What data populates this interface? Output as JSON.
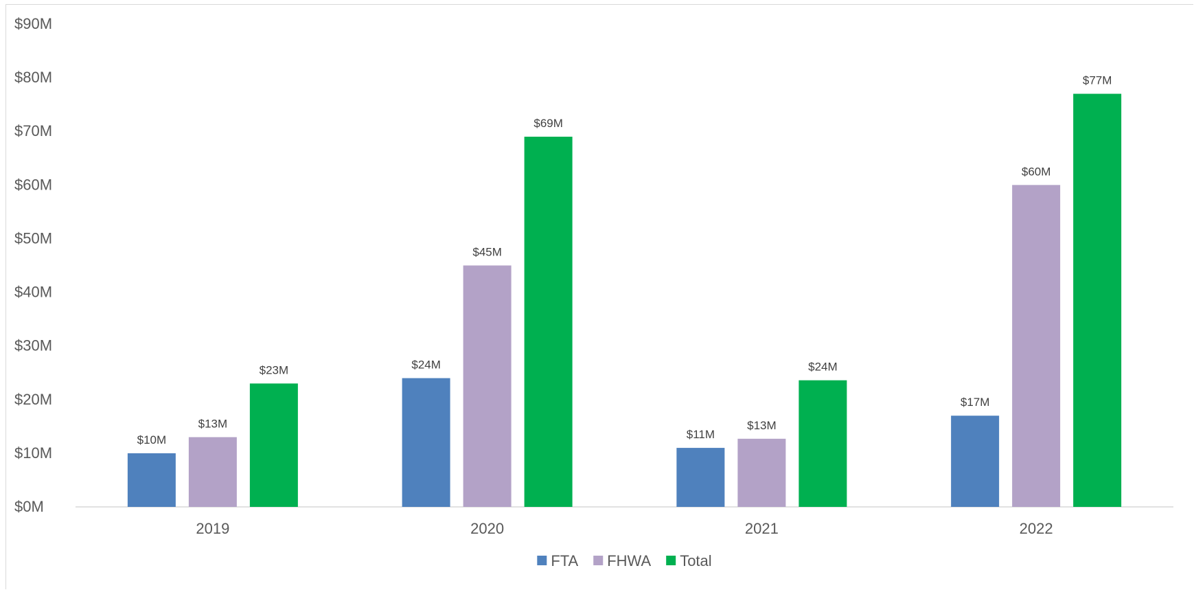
{
  "chart_data": {
    "type": "bar",
    "categories": [
      "2019",
      "2020",
      "2021",
      "2022"
    ],
    "series": [
      {
        "name": "FTA",
        "color": "#4f81bd",
        "values": [
          10,
          24,
          11,
          17
        ],
        "labels": [
          "$10M",
          "$24M",
          "$11M",
          "$17M"
        ]
      },
      {
        "name": "FHWA",
        "color": "#b3a2c7",
        "values": [
          13,
          45,
          12.7,
          60
        ],
        "labels": [
          "$13M",
          "$45M",
          "$13M",
          "$60M"
        ]
      },
      {
        "name": "Total",
        "color": "#00b050",
        "values": [
          23,
          69,
          23.6,
          77
        ],
        "labels": [
          "$23M",
          "$69M",
          "$24M",
          "$77M"
        ]
      }
    ],
    "ylim": [
      0,
      90
    ],
    "y_ticks": [
      0,
      10,
      20,
      30,
      40,
      50,
      60,
      70,
      80,
      90
    ],
    "y_tick_labels": [
      "$0M",
      "$10M",
      "$20M",
      "$30M",
      "$40M",
      "$50M",
      "$60M",
      "$70M",
      "$80M",
      "$90M"
    ],
    "grid": false,
    "legend_position": "bottom"
  }
}
